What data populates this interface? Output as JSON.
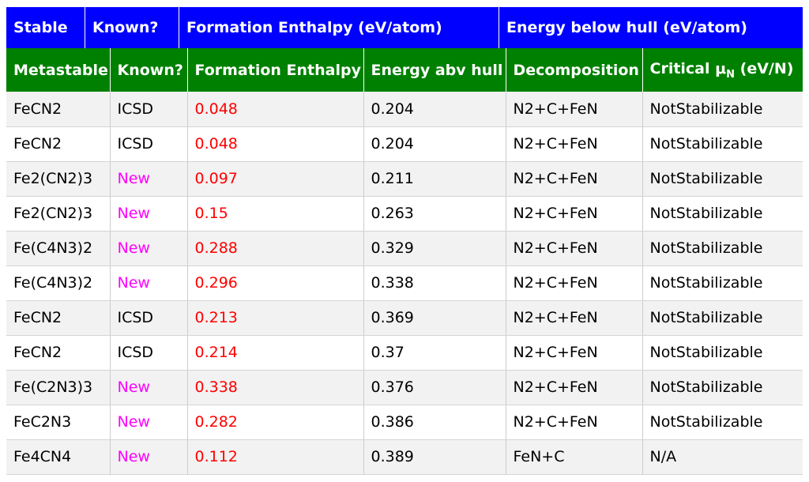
{
  "stable_header": {
    "stable": "Stable",
    "known": "Known?",
    "formation": "Formation Enthalpy (eV/atom)",
    "hull": "Energy below hull (eV/atom)"
  },
  "meta_header": {
    "metastable": "Metastable",
    "known": "Known?",
    "formation": "Formation Enthalpy",
    "energy_abv_hull": "Energy abv hull",
    "decomposition": "Decomposition",
    "critical_prefix": "Critical μ",
    "critical_sub": "N",
    "critical_suffix": " (eV/N)"
  },
  "colors": {
    "stable_bar": "#0000ff",
    "meta_bar": "#008000",
    "formation": "#ff0000",
    "new": "#ff00ff"
  },
  "rows": [
    {
      "name": "FeCN2",
      "known": "ICSD",
      "formation": "0.048",
      "hull": "0.204",
      "decomp": "N2+C+FeN",
      "critical": "NotStabilizable"
    },
    {
      "name": "FeCN2",
      "known": "ICSD",
      "formation": "0.048",
      "hull": "0.204",
      "decomp": "N2+C+FeN",
      "critical": "NotStabilizable"
    },
    {
      "name": "Fe2(CN2)3",
      "known": "New",
      "formation": "0.097",
      "hull": "0.211",
      "decomp": "N2+C+FeN",
      "critical": "NotStabilizable"
    },
    {
      "name": "Fe2(CN2)3",
      "known": "New",
      "formation": "0.15",
      "hull": "0.263",
      "decomp": "N2+C+FeN",
      "critical": "NotStabilizable"
    },
    {
      "name": "Fe(C4N3)2",
      "known": "New",
      "formation": "0.288",
      "hull": "0.329",
      "decomp": "N2+C+FeN",
      "critical": "NotStabilizable"
    },
    {
      "name": "Fe(C4N3)2",
      "known": "New",
      "formation": "0.296",
      "hull": "0.338",
      "decomp": "N2+C+FeN",
      "critical": "NotStabilizable"
    },
    {
      "name": "FeCN2",
      "known": "ICSD",
      "formation": "0.213",
      "hull": "0.369",
      "decomp": "N2+C+FeN",
      "critical": "NotStabilizable"
    },
    {
      "name": "FeCN2",
      "known": "ICSD",
      "formation": "0.214",
      "hull": "0.37",
      "decomp": "N2+C+FeN",
      "critical": "NotStabilizable"
    },
    {
      "name": "Fe(C2N3)3",
      "known": "New",
      "formation": "0.338",
      "hull": "0.376",
      "decomp": "N2+C+FeN",
      "critical": "NotStabilizable"
    },
    {
      "name": "FeC2N3",
      "known": "New",
      "formation": "0.282",
      "hull": "0.386",
      "decomp": "N2+C+FeN",
      "critical": "NotStabilizable"
    },
    {
      "name": "Fe4CN4",
      "known": "New",
      "formation": "0.112",
      "hull": "0.389",
      "decomp": "FeN+C",
      "critical": "N/A"
    }
  ]
}
